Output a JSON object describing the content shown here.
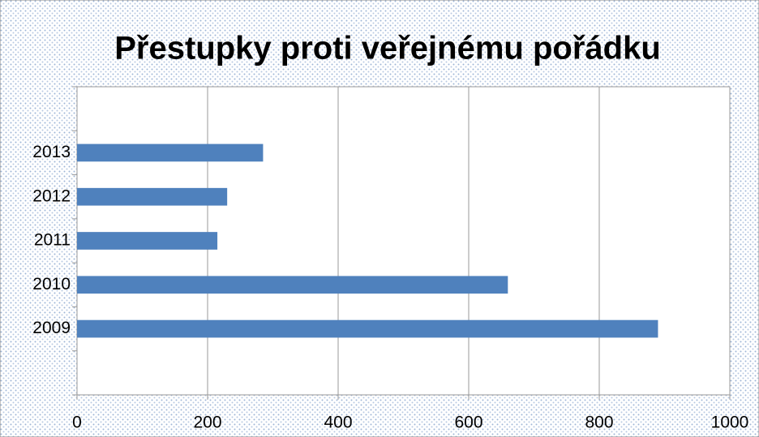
{
  "chart_data": {
    "type": "bar",
    "orientation": "horizontal",
    "title": "Přestupky proti veřejnému pořádku",
    "categories": [
      null,
      "2009",
      "2010",
      "2011",
      "2012",
      "2013",
      null
    ],
    "values": [
      null,
      890,
      660,
      215,
      230,
      285,
      null
    ],
    "color": "#4f81bd",
    "xlim": [
      0,
      1000
    ],
    "xticks": [
      0,
      200,
      400,
      600,
      800,
      1000
    ],
    "grid": true
  }
}
